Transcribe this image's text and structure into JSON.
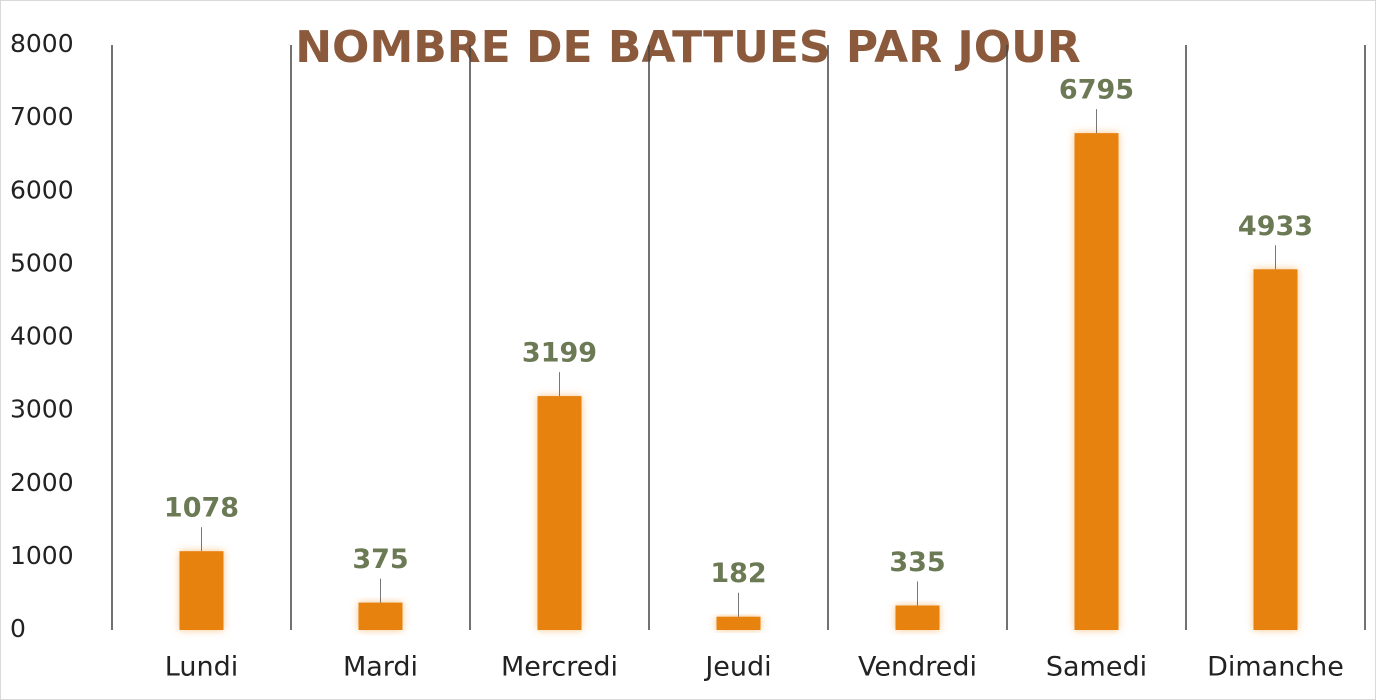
{
  "chart_data": {
    "type": "bar",
    "title": "NOMBRE DE BATTUES PAR JOUR",
    "categories": [
      "Lundi",
      "Mardi",
      "Mercredi",
      "Jeudi",
      "Vendredi",
      "Samedi",
      "Dimanche"
    ],
    "values": [
      1078,
      375,
      3199,
      182,
      335,
      6795,
      4933
    ],
    "color": "#e6820e",
    "ylim": [
      0,
      8000
    ],
    "yticks": [
      0,
      1000,
      2000,
      3000,
      4000,
      5000,
      6000,
      7000,
      8000
    ],
    "grid": true
  }
}
